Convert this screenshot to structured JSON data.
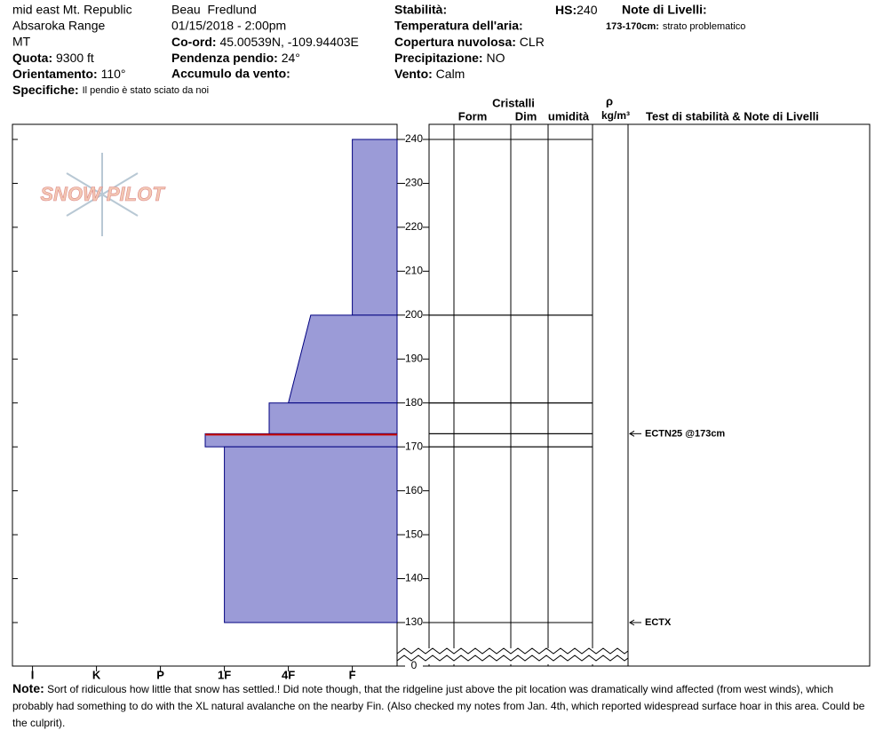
{
  "header": {
    "location": "mid east Mt. Republic",
    "range": "Absaroka Range",
    "state": "MT",
    "elevation": {
      "label": "Quota:",
      "value": "9300 ft"
    },
    "aspect": {
      "label": "Orientamento:",
      "value": "110°"
    },
    "specifics": {
      "label": "Specifiche:",
      "value": "Il pendio è stato sciato da noi"
    },
    "observer": "Beau  Fredlund",
    "datetime": "01/15/2018 - 2:00pm",
    "coords": {
      "label": "Co-ord:",
      "value": "45.00539N, -109.94403E"
    },
    "slope": {
      "label": "Pendenza pendio:",
      "value": "24°"
    },
    "wind_loading": {
      "label": "Accumulo da vento:"
    },
    "stability": {
      "label": "Stabilità:"
    },
    "hs": {
      "label": "HS:",
      "value": "240"
    },
    "air_temp": {
      "label": "Temperatura dell'aria:"
    },
    "sky": {
      "label": "Copertura nuvolosa:",
      "value": "CLR"
    },
    "precip": {
      "label": "Precipitazione:",
      "value": "NO"
    },
    "wind": {
      "label": "Vento:",
      "value": "Calm"
    },
    "layer_notes": {
      "label": "Note di Livelli:",
      "items": [
        {
          "range": "173-170cm:",
          "text": "strato problematico"
        }
      ]
    }
  },
  "logo": "SNOW PILOT",
  "columns": {
    "crystals": "Cristalli",
    "form": "Form",
    "size": "Dim",
    "moisture": "umidità",
    "rho": "ρ",
    "density_unit": "kg/m³",
    "tests": "Test di stabilità & Note di Livelli"
  },
  "profile": {
    "depth_lim": [
      130,
      240
    ],
    "depth_ticks": [
      0,
      130,
      140,
      150,
      160,
      170,
      180,
      190,
      200,
      210,
      220,
      230,
      240
    ],
    "hardness_lim": [
      0.3,
      6.3
    ],
    "hardness_ticks": [
      {
        "value": 6,
        "label": "I"
      },
      {
        "value": 5,
        "label": "K"
      },
      {
        "value": 4,
        "label": "P"
      },
      {
        "value": 3,
        "label": "1F"
      },
      {
        "value": 2,
        "label": "4F"
      },
      {
        "value": 1,
        "label": "F"
      }
    ],
    "layers": [
      {
        "top": 240,
        "bottom": 200,
        "hardness_top": 1,
        "hardness_bottom": 1
      },
      {
        "top": 200,
        "bottom": 180,
        "hardness_top": 1.65,
        "hardness_bottom": 2
      },
      {
        "top": 180,
        "bottom": 173,
        "hardness_top": 2.3,
        "hardness_bottom": 2.3
      },
      {
        "top": 173,
        "bottom": 170,
        "hardness_top": 3.3,
        "hardness_bottom": 3.3
      },
      {
        "top": 170,
        "bottom": 130,
        "hardness_top": 3,
        "hardness_bottom": 3
      }
    ],
    "critical_depth": 173,
    "tests": [
      {
        "depth": 173,
        "label": "ECTN25 @173cm"
      },
      {
        "depth": 130,
        "label": "ECTX"
      }
    ]
  },
  "note": {
    "label": "Note:",
    "text": "Sort of ridiculous how little that snow has settled.!  Did note though, that the ridgeline just above the pit location was dramatically wind affected (from west winds), which probably had something to do with the XL natural avalanche on the nearby Fin.  (Also checked my notes from Jan. 4th, which reported widespread surface hoar in this area.  Could be the culprit)."
  }
}
